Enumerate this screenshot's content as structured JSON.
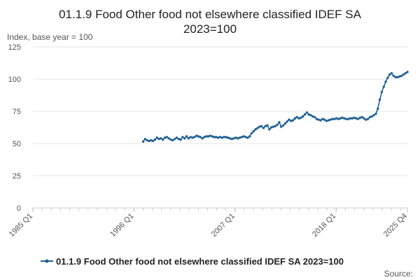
{
  "chart_data": {
    "type": "line",
    "title_line1": "01.1.9 Food Other food not elsewhere classified IDEF SA",
    "title_line2": "2023=100",
    "ylabel": "Index, base year = 100",
    "xlabel": "",
    "ylim": [
      0,
      125
    ],
    "yticks": [
      0,
      25,
      50,
      75,
      100,
      125
    ],
    "xticks": [
      "1985 Q1",
      "1996 Q1",
      "2007 Q1",
      "2018 Q1",
      "2025 Q4"
    ],
    "grid": true,
    "legend_position": "bottom",
    "source_label": "Source:",
    "color": "#206095",
    "series": [
      {
        "name": "01.1.9 Food Other food not elsewhere classified IDEF SA 2023=100",
        "x_start": "1997 Q1",
        "x_end": "2025 Q4",
        "values": [
          51.5,
          53.5,
          52.5,
          52.0,
          52.5,
          52.0,
          53.0,
          54.5,
          53.5,
          54.0,
          53.0,
          54.5,
          55.0,
          54.0,
          53.0,
          52.5,
          53.5,
          54.5,
          53.5,
          53.0,
          55.0,
          54.0,
          55.5,
          54.0,
          55.0,
          54.5,
          55.0,
          56.0,
          55.5,
          55.0,
          54.0,
          55.0,
          55.5,
          55.5,
          56.0,
          55.5,
          55.0,
          55.0,
          54.5,
          55.0,
          54.5,
          55.0,
          55.0,
          54.5,
          54.0,
          53.5,
          54.0,
          54.5,
          54.0,
          54.5,
          55.0,
          55.5,
          55.0,
          54.5,
          55.5,
          58.0,
          59.5,
          61.0,
          62.0,
          63.0,
          63.5,
          62.0,
          63.5,
          64.0,
          61.0,
          62.5,
          63.0,
          63.5,
          64.5,
          66.5,
          63.0,
          64.0,
          65.5,
          67.0,
          68.5,
          67.5,
          68.0,
          69.5,
          70.5,
          69.5,
          70.0,
          71.0,
          72.5,
          74.0,
          72.5,
          72.0,
          71.0,
          70.5,
          69.0,
          68.5,
          68.0,
          69.0,
          68.5,
          67.5,
          68.0,
          68.5,
          69.0,
          69.0,
          69.5,
          69.0,
          69.5,
          70.0,
          69.5,
          69.0,
          69.0,
          69.5,
          69.5,
          70.0,
          69.5,
          69.0,
          70.0,
          70.5,
          69.5,
          68.5,
          69.0,
          70.5,
          71.0,
          72.0,
          73.0,
          77.0,
          84.0,
          90.0,
          94.0,
          98.0,
          101.0,
          103.5,
          104.5,
          102.5,
          101.5,
          101.5,
          102.0,
          102.5,
          103.5,
          104.5,
          105.5
        ]
      }
    ]
  }
}
